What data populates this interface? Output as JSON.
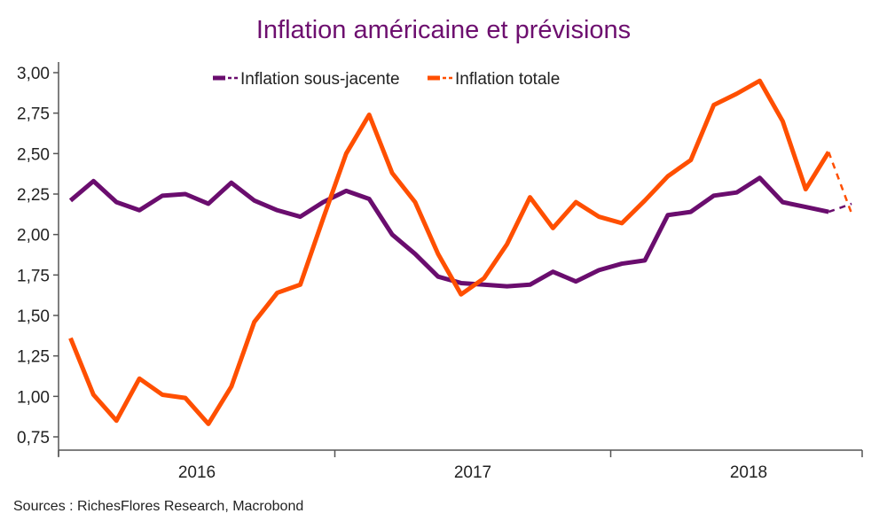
{
  "chart_data": {
    "type": "line",
    "title": "Inflation américaine et prévisions",
    "xlabel": "",
    "ylabel": "",
    "ylim": [
      0.75,
      3.0
    ],
    "yticks": [
      "3,00",
      "2,75",
      "2,50",
      "2,25",
      "2,00",
      "1,75",
      "1,50",
      "1,25",
      "1,00",
      "0,75"
    ],
    "ytick_values": [
      3.0,
      2.75,
      2.5,
      2.25,
      2.0,
      1.75,
      1.5,
      1.25,
      1.0,
      0.75
    ],
    "x_start": "2016-01",
    "x_frequency": "monthly",
    "xtick_labels": [
      "2016",
      "2017",
      "2018"
    ],
    "grid": false,
    "legend_position": "top-center",
    "series": [
      {
        "name": "Inflation sous-jacente",
        "color": "#6a0d6e",
        "values": [
          2.21,
          2.33,
          2.2,
          2.15,
          2.24,
          2.25,
          2.19,
          2.32,
          2.21,
          2.15,
          2.11,
          2.2,
          2.27,
          2.22,
          2.0,
          1.88,
          1.74,
          1.7,
          1.69,
          1.68,
          1.69,
          1.77,
          1.71,
          1.78,
          1.82,
          1.84,
          2.12,
          2.14,
          2.24,
          2.26,
          2.35,
          2.2,
          2.17,
          2.14
        ],
        "forecast": [
          2.19
        ]
      },
      {
        "name": "Inflation totale",
        "color": "#ff4f00",
        "values": [
          1.36,
          1.01,
          0.85,
          1.11,
          1.01,
          0.99,
          0.83,
          1.06,
          1.46,
          1.64,
          1.69,
          2.1,
          2.5,
          2.74,
          2.38,
          2.2,
          1.88,
          1.63,
          1.73,
          1.94,
          2.23,
          2.04,
          2.2,
          2.11,
          2.07,
          2.21,
          2.36,
          2.46,
          2.8,
          2.87,
          2.95,
          2.7,
          2.28,
          2.51
        ],
        "forecast": [
          2.13
        ]
      }
    ]
  },
  "footer": {
    "sources": "Sources : RichesFlores Research, Macrobond"
  }
}
